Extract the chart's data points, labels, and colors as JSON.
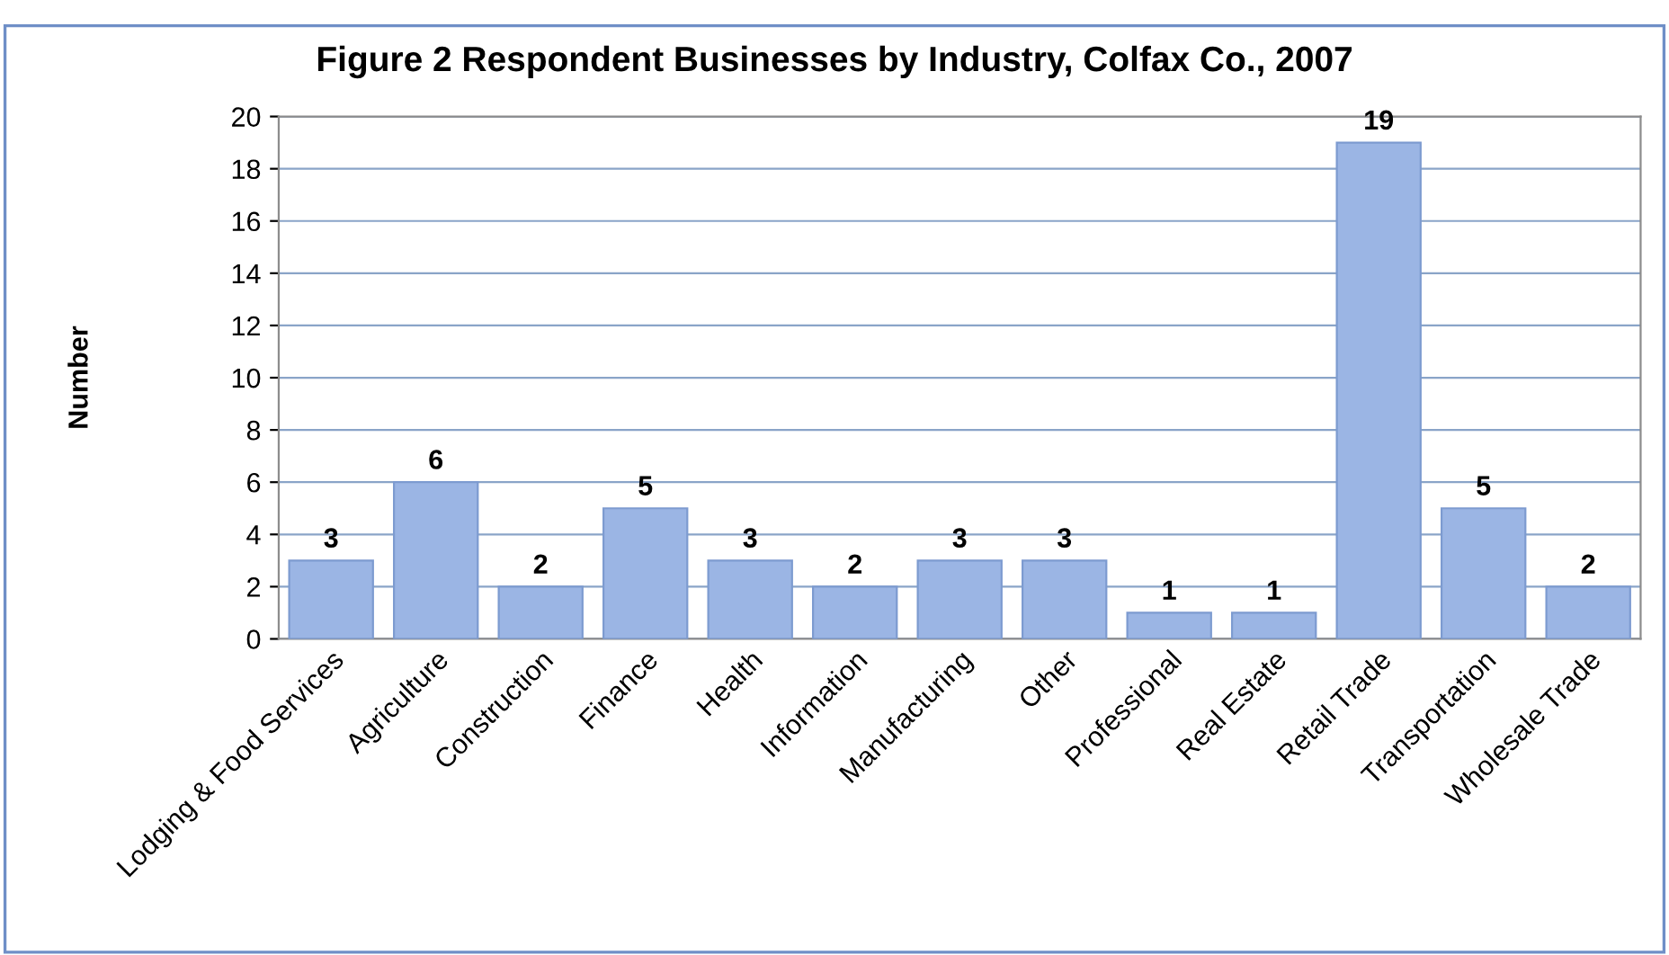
{
  "chart_data": {
    "type": "bar",
    "title": "Figure 2 Respondent Businesses by Industry, Colfax Co., 2007",
    "ylabel": "Number",
    "categories": [
      "Lodging & Food Services",
      "Agriculture",
      "Construction",
      "Finance",
      "Health",
      "Information",
      "Manufacturing",
      "Other",
      "Professional",
      "Real Estate",
      "Retail Trade",
      "Transportation",
      "Wholesale Trade"
    ],
    "values": [
      3,
      6,
      2,
      5,
      3,
      2,
      3,
      3,
      1,
      1,
      19,
      5,
      2
    ],
    "color": "#9bb5e4",
    "ylim": [
      0,
      20
    ],
    "yticks": [
      0,
      2,
      4,
      6,
      8,
      10,
      12,
      14,
      16,
      18,
      20
    ],
    "grid": "y",
    "data_labels": true
  }
}
